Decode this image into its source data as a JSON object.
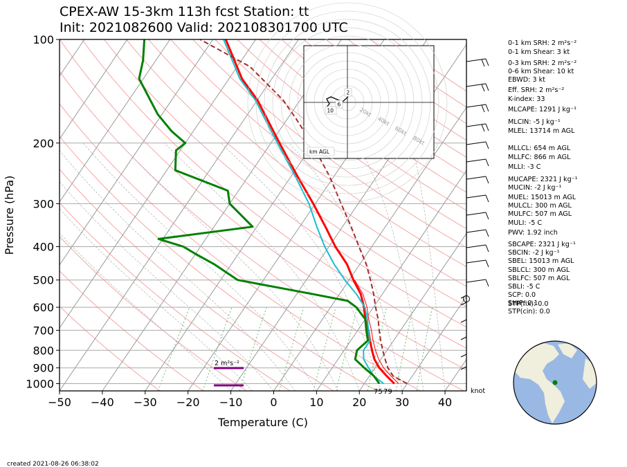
{
  "title": {
    "line1": "CPEX-AW 15-3km  113h fcst  Station: tt",
    "line2": "Init: 2021082600  Valid: 202108301700 UTC"
  },
  "chart_data": {
    "type": "line",
    "subtype": "skew-t",
    "xlabel": "Temperature (C)",
    "ylabel": "Pressure (hPa)",
    "xlim": [
      -50,
      45
    ],
    "ylim": [
      1050,
      100
    ],
    "yscale": "log",
    "x_ticks": [
      -50,
      -40,
      -30,
      -20,
      -10,
      0,
      10,
      20,
      30,
      40
    ],
    "x_tick_labels": [
      "−50",
      "−40",
      "−30",
      "−20",
      "−10",
      "0",
      "10",
      "20",
      "30",
      "40"
    ],
    "y_ticks": [
      100,
      200,
      300,
      400,
      500,
      600,
      700,
      800,
      900,
      1000
    ],
    "grid": true,
    "series": [
      {
        "role": "temperature",
        "color": "#ff0000",
        "p": [
          1000,
          950,
          900,
          850,
          800,
          750,
          700,
          650,
          600,
          550,
          500,
          450,
          400,
          350,
          300,
          250,
          200,
          150,
          130,
          100
        ],
        "t": [
          27,
          24,
          21,
          18.5,
          16.5,
          14.5,
          12.5,
          10,
          7.8,
          5,
          1,
          -3,
          -8.5,
          -14,
          -20.5,
          -28.5,
          -38,
          -50,
          -57,
          -67
        ]
      },
      {
        "role": "virtual-temperature",
        "color": "#ff0000",
        "p": [
          1000,
          950,
          900,
          850,
          800,
          750,
          700,
          650,
          600,
          550,
          500
        ],
        "t": [
          28,
          25,
          22,
          19.5,
          17.3,
          15.2,
          13.2,
          10.8,
          8.5,
          5.5,
          1.3
        ]
      },
      {
        "role": "wet-bulb",
        "color": "#17becf",
        "p": [
          1000,
          950,
          900,
          850,
          800,
          750,
          700,
          650,
          600,
          550,
          500,
          450,
          400,
          350,
          300,
          250,
          200,
          150,
          130,
          100
        ],
        "t": [
          24.5,
          21,
          18.5,
          16,
          14.5,
          14.5,
          12.5,
          10.5,
          8,
          4,
          -1,
          -6,
          -11,
          -16,
          -21.5,
          -29,
          -38.5,
          -50.5,
          -57.5,
          -67.5
        ]
      },
      {
        "role": "dewpoint",
        "color": "#008000",
        "p": [
          1000,
          950,
          900,
          850,
          800,
          750,
          700,
          650,
          600,
          575,
          550,
          500,
          450,
          420,
          400,
          380,
          350,
          300,
          275,
          240,
          210,
          200,
          185,
          165,
          150,
          130,
          115,
          100
        ],
        "t": [
          23.5,
          21,
          17.5,
          14,
          13,
          14,
          12,
          10,
          6,
          3,
          -6,
          -26,
          -34,
          -40,
          -44,
          -51,
          -31,
          -40,
          -42.5,
          -58,
          -61,
          -60,
          -65,
          -71,
          -75,
          -81,
          -83,
          -86
        ]
      },
      {
        "role": "parcel",
        "color": "#a52a2a",
        "p": [
          1000,
          950,
          900,
          850,
          800,
          750,
          700,
          650,
          600,
          550,
          500,
          450,
          400,
          350,
          300,
          250,
          200,
          170,
          150,
          120,
          100
        ],
        "t": [
          30,
          25.5,
          23,
          21,
          19,
          17,
          15,
          13,
          10.5,
          8,
          5,
          1.5,
          -3,
          -8,
          -14,
          -21,
          -30.5,
          -38,
          -44,
          -57,
          -73
        ]
      }
    ],
    "surface_labels": [
      {
        "text": "75",
        "color": "#008000"
      },
      {
        "text": "79",
        "color": "#ff0000"
      }
    ],
    "srh_labels": {
      "text": "2 m²s⁻²",
      "color": "#800080"
    },
    "barb_units_label": "knot",
    "hodograph": {
      "labels": [
        "20kt",
        "40kt",
        "60kt",
        "80kt"
      ],
      "height_labels": [
        "2",
        "6",
        "10"
      ],
      "legend": "km AGL"
    }
  },
  "indices": [
    "0-1 km SRH: 2 m²s⁻²",
    "0-1 km Shear: 3 kt",
    "0-3 km SRH: 2 m²s⁻²",
    "0-6 km Shear: 10 kt",
    "EBWD: 3 kt",
    "Eff. SRH: 2 m²s⁻²",
    "K-index: 33",
    "MLCAPE: 1291 J kg⁻¹",
    "MLCIN: -5 J kg⁻¹",
    "MLEL: 13714 m AGL",
    "MLLCL: 654 m AGL",
    "MLLFC: 866 m AGL",
    "MLLI: -3 C",
    "MUCAPE: 2321 J kg⁻¹",
    "MUCIN: -2 J kg⁻¹",
    "MUEL: 15013 m AGL",
    "MULCL: 300 m AGL",
    "MULFC: 507 m AGL",
    "MULI: -5 C",
    "PWV: 1.92 inch",
    "SBCAPE: 2321 J kg⁻¹",
    "SBCIN: -2 J kg⁻¹",
    "SBEL: 15013 m AGL",
    "SBLCL: 300 m AGL",
    "SBLFC: 507 m AGL",
    "SBLI: -5 C",
    "SCP: 0.0",
    "SHIP: 0.1",
    "STP(cin): 0.0",
    "STP(fix): 0.0"
  ],
  "footer": "created 2021-08-26 06:38:02",
  "colors": {
    "temperature": "#ff0000",
    "dewpoint": "#008000",
    "wetbulb": "#17becf",
    "parcel": "#a52a2a",
    "isotherm": "#999999",
    "dry_adiabat": "#f4a6a6",
    "mixing_ratio": "#7fc77f",
    "land": "#f0eedc",
    "ocean": "#9ab8e4",
    "station": "#008000"
  }
}
